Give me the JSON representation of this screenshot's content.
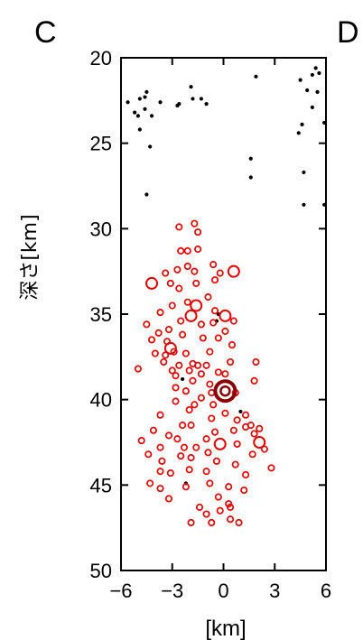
{
  "chart_data": {
    "type": "scatter",
    "panel_letters": [
      "C",
      "D"
    ],
    "ylabel": "深さ[km]",
    "xlabel": "[km]",
    "xlim": [
      -6,
      6
    ],
    "ylim": [
      20,
      50
    ],
    "y_inverted": true,
    "x_ticks": [
      "−6",
      "−3",
      "0",
      "3",
      "6"
    ],
    "x_tick_values": [
      -6,
      -3,
      0,
      3,
      6
    ],
    "y_ticks": [
      "20",
      "25",
      "30",
      "35",
      "40",
      "45",
      "50"
    ],
    "y_tick_values": [
      20,
      25,
      30,
      35,
      40,
      45,
      50
    ],
    "grid": false,
    "colors": {
      "deep_events": "#e60000",
      "shallow_events": "#000000",
      "mainshock": "#8b0000"
    },
    "series": [
      {
        "marker": "dot",
        "color": "#000000",
        "points": [
          [
            -5.6,
            22.6
          ],
          [
            -5.2,
            23.2
          ],
          [
            -5.0,
            23.4
          ],
          [
            -4.9,
            22.4
          ],
          [
            -4.6,
            22.3
          ],
          [
            -4.5,
            22.0
          ],
          [
            -4.6,
            23.0
          ],
          [
            -4.2,
            23.4
          ],
          [
            -4.3,
            25.2
          ],
          [
            -4.9,
            24.2
          ],
          [
            -3.7,
            22.6
          ],
          [
            -2.7,
            22.8
          ],
          [
            -2.6,
            22.7
          ],
          [
            -1.9,
            21.7
          ],
          [
            -1.8,
            22.4
          ],
          [
            -1.3,
            22.4
          ],
          [
            -1.0,
            22.7
          ],
          [
            1.9,
            21.1
          ],
          [
            1.6,
            25.9
          ],
          [
            1.6,
            27.0
          ],
          [
            4.5,
            21.3
          ],
          [
            4.9,
            21.9
          ],
          [
            5.2,
            21.0
          ],
          [
            5.4,
            20.6
          ],
          [
            5.6,
            20.9
          ],
          [
            5.5,
            22.0
          ],
          [
            5.2,
            22.9
          ],
          [
            4.6,
            23.9
          ],
          [
            4.4,
            24.4
          ],
          [
            5.9,
            23.8
          ],
          [
            4.7,
            26.7
          ],
          [
            4.7,
            28.6
          ],
          [
            5.9,
            28.6
          ],
          [
            -4.5,
            28.0
          ],
          [
            -0.3,
            35.0
          ],
          [
            -0.4,
            35.4
          ],
          [
            -2.4,
            38.8
          ],
          [
            -2.2,
            44.9
          ],
          [
            1.0,
            40.7
          ]
        ]
      },
      {
        "marker": "circle",
        "color": "#e60000",
        "points": [
          [
            -2.6,
            29.9
          ],
          [
            -1.7,
            29.7
          ],
          [
            -1.5,
            30.2
          ],
          [
            -2.5,
            31.3
          ],
          [
            -2.1,
            31.3
          ],
          [
            -1.5,
            31.2
          ],
          [
            -2.7,
            32.4
          ],
          [
            -2.1,
            32.2
          ],
          [
            -1.7,
            32.5
          ],
          [
            -3.4,
            32.6
          ],
          [
            -4.2,
            33.2
          ],
          [
            -3.1,
            33.2
          ],
          [
            -2.6,
            33.5
          ],
          [
            -1.6,
            33.2
          ],
          [
            -0.6,
            32.1
          ],
          [
            -0.2,
            32.6
          ],
          [
            0.6,
            32.5
          ],
          [
            -0.5,
            33.0
          ],
          [
            -3.0,
            34.5
          ],
          [
            -2.1,
            34.3
          ],
          [
            -1.6,
            34.5
          ],
          [
            -0.9,
            34.0
          ],
          [
            -0.5,
            34.8
          ],
          [
            0.1,
            35.1
          ],
          [
            -3.7,
            34.9
          ],
          [
            -4.5,
            35.6
          ],
          [
            -3.8,
            36.1
          ],
          [
            -3.2,
            35.9
          ],
          [
            -2.5,
            35.4
          ],
          [
            -1.9,
            35.1
          ],
          [
            -1.3,
            35.6
          ],
          [
            -0.6,
            35.5
          ],
          [
            0.1,
            36.0
          ],
          [
            0.6,
            35.4
          ],
          [
            -4.2,
            36.5
          ],
          [
            -3.3,
            36.6
          ],
          [
            -2.4,
            36.2
          ],
          [
            -1.2,
            36.4
          ],
          [
            -0.3,
            36.4
          ],
          [
            0.5,
            36.8
          ],
          [
            -3.1,
            37.0
          ],
          [
            -2.2,
            37.3
          ],
          [
            -1.8,
            37.9
          ],
          [
            -2.6,
            38.0
          ],
          [
            -3.4,
            37.4
          ],
          [
            -3.0,
            38.3
          ],
          [
            -3.5,
            37.8
          ],
          [
            -4.0,
            37.3
          ],
          [
            -2.9,
            37.2
          ],
          [
            -0.8,
            37.2
          ],
          [
            0.4,
            37.8
          ],
          [
            0.1,
            38.5
          ],
          [
            -0.3,
            38.4
          ],
          [
            -1.0,
            38.0
          ],
          [
            -1.5,
            38.0
          ],
          [
            -2.0,
            38.3
          ],
          [
            -5.0,
            38.2
          ],
          [
            -2.8,
            38.6
          ],
          [
            -1.8,
            38.9
          ],
          [
            -1.3,
            38.5
          ],
          [
            -0.8,
            39.1
          ],
          [
            -2.2,
            39.5
          ],
          [
            -2.8,
            39.3
          ],
          [
            -1.3,
            39.9
          ],
          [
            -0.7,
            39.6
          ],
          [
            0.7,
            39.6
          ],
          [
            1.8,
            38.9
          ],
          [
            1.9,
            37.8
          ],
          [
            -1.7,
            40.3
          ],
          [
            -2.0,
            40.6
          ],
          [
            -1.9,
            41.5
          ],
          [
            -2.4,
            41.5
          ],
          [
            -3.7,
            40.9
          ],
          [
            -2.8,
            40.1
          ],
          [
            -0.6,
            40.3
          ],
          [
            -0.7,
            41.1
          ],
          [
            0.1,
            40.8
          ],
          [
            0.8,
            41.2
          ],
          [
            1.3,
            40.9
          ],
          [
            -4.1,
            41.8
          ],
          [
            -4.8,
            42.4
          ],
          [
            -3.7,
            42.8
          ],
          [
            -3.2,
            42.1
          ],
          [
            -2.7,
            42.3
          ],
          [
            -2.3,
            42.8
          ],
          [
            -1.6,
            42.8
          ],
          [
            -1.0,
            42.3
          ],
          [
            -0.5,
            41.9
          ],
          [
            0.6,
            41.8
          ],
          [
            1.3,
            41.6
          ],
          [
            2.1,
            41.7
          ],
          [
            1.6,
            41.5
          ],
          [
            1.8,
            42.0
          ],
          [
            -4.4,
            43.2
          ],
          [
            -3.6,
            43.6
          ],
          [
            -2.5,
            43.3
          ],
          [
            -1.9,
            43.4
          ],
          [
            -0.9,
            43.1
          ],
          [
            -0.2,
            42.6
          ],
          [
            0.8,
            42.6
          ],
          [
            1.7,
            43.2
          ],
          [
            2.4,
            42.9
          ],
          [
            -3.7,
            44.2
          ],
          [
            -3.1,
            44.3
          ],
          [
            -2.0,
            44.1
          ],
          [
            -1.0,
            44.2
          ],
          [
            -0.4,
            43.6
          ],
          [
            0.7,
            43.8
          ],
          [
            1.3,
            44.4
          ],
          [
            2.1,
            42.5
          ],
          [
            2.8,
            44.0
          ],
          [
            -4.3,
            44.9
          ],
          [
            -3.7,
            45.2
          ],
          [
            -3.2,
            45.8
          ],
          [
            -2.2,
            45.1
          ],
          [
            -0.8,
            44.9
          ],
          [
            0.3,
            45.1
          ],
          [
            1.2,
            45.3
          ],
          [
            -0.3,
            45.7
          ],
          [
            0.3,
            46.1
          ],
          [
            -0.2,
            46.5
          ],
          [
            -1.0,
            46.7
          ],
          [
            -1.9,
            47.2
          ],
          [
            -0.7,
            47.2
          ],
          [
            0.4,
            47.0
          ],
          [
            0.9,
            47.2
          ],
          [
            0.4,
            46.3
          ],
          [
            -1.4,
            46.3
          ]
        ],
        "sizes": [
          1,
          1,
          1,
          1,
          1,
          1,
          1,
          1,
          1,
          1,
          2,
          1,
          1,
          1,
          1,
          1,
          2,
          1,
          1,
          1,
          2,
          1,
          1,
          2,
          1,
          1,
          1,
          1,
          1,
          2,
          1,
          1,
          1,
          1,
          1,
          1,
          1,
          1,
          1,
          1,
          2,
          1,
          1,
          1,
          1,
          1,
          1,
          1,
          1,
          1,
          1,
          1,
          1,
          1,
          1,
          1,
          1,
          1,
          1,
          1,
          1,
          1,
          1,
          1,
          1,
          1,
          1,
          1,
          1,
          1,
          1,
          1,
          1,
          1,
          1,
          1,
          1,
          1,
          1,
          1,
          1,
          1,
          1,
          1,
          1,
          1,
          1,
          1,
          1,
          1,
          1,
          1,
          1,
          1,
          1,
          1,
          1,
          1,
          2,
          1,
          1,
          1,
          1,
          1,
          1,
          1,
          1,
          1,
          1,
          2,
          1,
          1,
          1,
          1,
          1,
          1,
          1,
          1,
          1,
          1,
          1,
          1,
          1,
          1,
          1,
          1,
          1
        ]
      },
      {
        "marker": "mainshock",
        "color": "#8b0000",
        "points": [
          [
            0.1,
            39.5
          ]
        ]
      }
    ]
  }
}
